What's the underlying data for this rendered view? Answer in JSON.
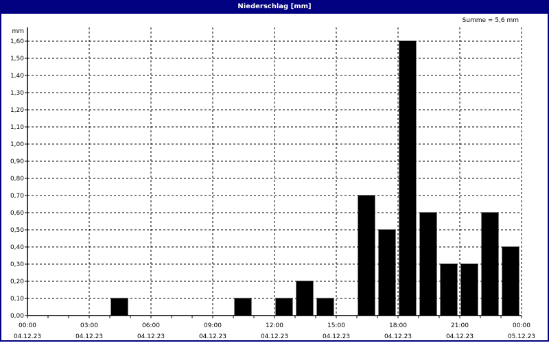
{
  "window": {
    "title": "Niederschlag [mm]"
  },
  "summary": "Summe = 5,6 mm",
  "chart_data": {
    "type": "bar",
    "title": "Niederschlag [mm]",
    "ylabel": "mm",
    "ylim": [
      0,
      1.6
    ],
    "yticks": [
      "0,00",
      "0,10",
      "0,20",
      "0,30",
      "0,40",
      "0,50",
      "0,60",
      "0,70",
      "0,80",
      "0,90",
      "1,00",
      "1,10",
      "1,20",
      "1,30",
      "1,40",
      "1,50",
      "1,60"
    ],
    "xlim": [
      "04.12.23 00:00",
      "05.12.23 00:00"
    ],
    "xticks": [
      {
        "time": "00:00",
        "date": "04.12.23"
      },
      {
        "time": "03:00",
        "date": "04.12.23"
      },
      {
        "time": "06:00",
        "date": "04.12.23"
      },
      {
        "time": "09:00",
        "date": "04.12.23"
      },
      {
        "time": "12:00",
        "date": "04.12.23"
      },
      {
        "time": "15:00",
        "date": "04.12.23"
      },
      {
        "time": "18:00",
        "date": "04.12.23"
      },
      {
        "time": "21:00",
        "date": "04.12.23"
      },
      {
        "time": "00:00",
        "date": "05.12.23"
      }
    ],
    "categories": [
      "00:00",
      "01:00",
      "02:00",
      "03:00",
      "04:00",
      "05:00",
      "06:00",
      "07:00",
      "08:00",
      "09:00",
      "10:00",
      "11:00",
      "12:00",
      "13:00",
      "14:00",
      "15:00",
      "16:00",
      "17:00",
      "18:00",
      "19:00",
      "20:00",
      "21:00",
      "22:00",
      "23:00"
    ],
    "values": [
      0,
      0,
      0,
      0,
      0.1,
      0,
      0,
      0,
      0,
      0,
      0.1,
      0,
      0.1,
      0.2,
      0.1,
      0,
      0.7,
      0.5,
      1.6,
      0.6,
      0.3,
      0.3,
      0.6,
      0.4
    ],
    "grid": true,
    "bar_color": "#000000"
  },
  "colors": {
    "titlebar": "#000080"
  }
}
